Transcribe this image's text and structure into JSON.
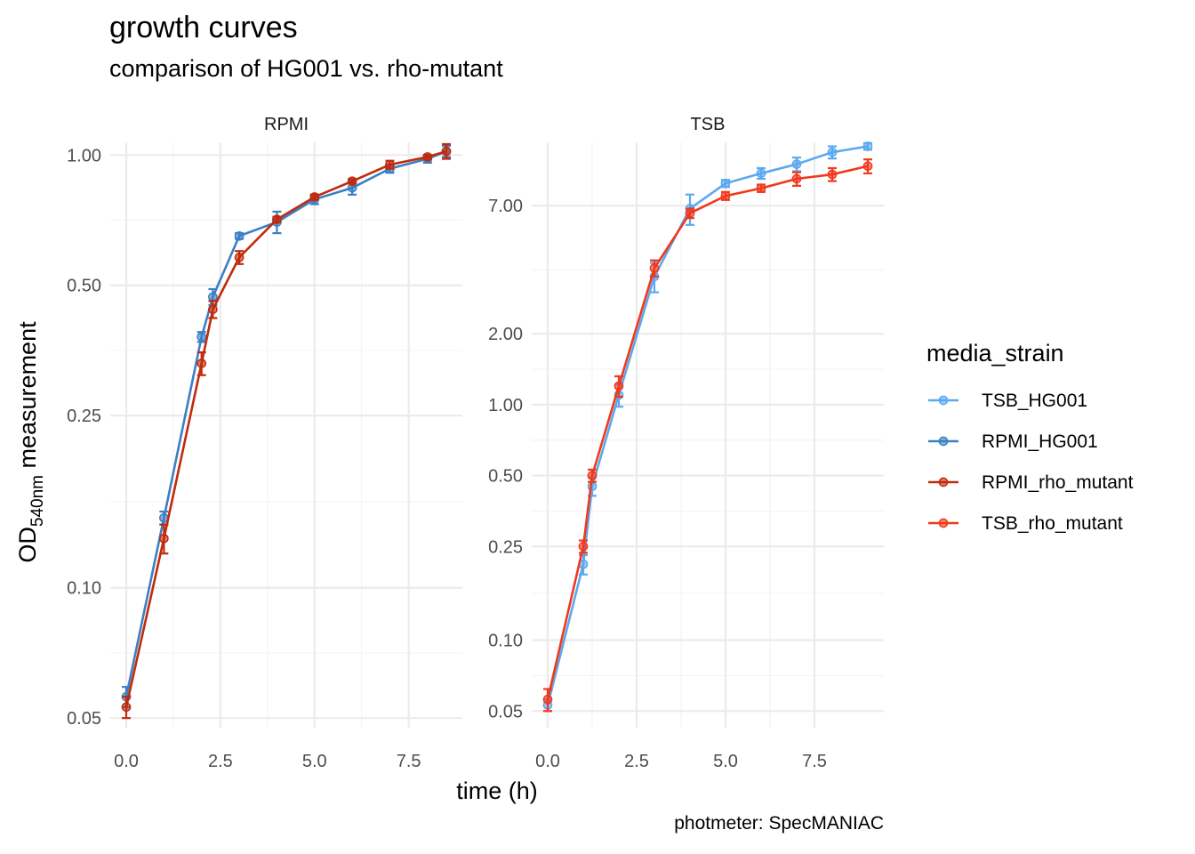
{
  "colors": {
    "TSB_HG001": "#5aa9f0",
    "RPMI_HG001": "#3b7fc4",
    "RPMI_rho_mutant": "#c02b0d",
    "TSB_rho_mutant": "#f0391c",
    "grid_major": "#ebebeb",
    "grid_minor": "#f3f3f3"
  },
  "chart_data": {
    "type": "line",
    "title": "growth curves",
    "subtitle": "comparison of HG001 vs. rho-mutant",
    "xlabel": "time (h)",
    "ylabel": {
      "main": "OD",
      "subscript": "540nm",
      "rest": " measurement"
    },
    "caption": "photmeter: SpecMANIAC",
    "yscale": "log10",
    "legend": {
      "title": "media_strain",
      "position": "right",
      "entries": [
        "TSB_HG001",
        "RPMI_HG001",
        "RPMI_rho_mutant",
        "TSB_rho_mutant"
      ]
    },
    "facets": [
      {
        "label": "RPMI",
        "xlim": [
          -0.425,
          8.925
        ],
        "ylim": [
          0.0475,
          1.07
        ],
        "x_ticks": [
          0,
          2.5,
          5,
          7.5
        ],
        "x_tick_labels": [
          "0.0",
          "2.5",
          "5.0",
          "7.5"
        ],
        "y_ticks": [
          0.05,
          0.1,
          0.25,
          0.5,
          1.0
        ],
        "y_tick_labels": [
          "0.05",
          "0.10",
          "0.25",
          "0.50",
          "1.00"
        ],
        "series": [
          {
            "name": "RPMI_HG001",
            "x": [
              0,
              1,
              2,
              2.3,
              3,
              4,
              5,
              6,
              7,
              8,
              8.5
            ],
            "y": [
              0.056,
              0.145,
              0.38,
              0.47,
              0.65,
              0.7,
              0.79,
              0.84,
              0.93,
              0.98,
              1.02
            ],
            "err": [
              0.003,
              0.005,
              0.01,
              0.02,
              0.01,
              0.04,
              0.02,
              0.03,
              0.02,
              0.02,
              0.03
            ]
          },
          {
            "name": "RPMI_rho_mutant",
            "x": [
              0,
              1,
              2,
              2.3,
              3,
              4,
              5,
              6,
              7,
              8,
              8.5
            ],
            "y": [
              0.053,
              0.13,
              0.33,
              0.44,
              0.58,
              0.71,
              0.8,
              0.87,
              0.95,
              0.99,
              1.02
            ],
            "err": [
              0.003,
              0.01,
              0.02,
              0.02,
              0.02,
              0.01,
              0.01,
              0.01,
              0.02,
              0.01,
              0.04
            ]
          }
        ]
      },
      {
        "label": "TSB",
        "xlim": [
          -0.45,
          9.45
        ],
        "ylim": [
          0.0425,
          13.0
        ],
        "x_ticks": [
          0,
          2.5,
          5,
          7.5
        ],
        "x_tick_labels": [
          "0.0",
          "2.5",
          "5.0",
          "7.5"
        ],
        "y_ticks": [
          0.05,
          0.1,
          0.25,
          0.5,
          1.0,
          2.0,
          7.0
        ],
        "y_tick_labels": [
          "0.05",
          "0.10",
          "0.25",
          "0.50",
          "1.00",
          "2.00",
          "7.00"
        ],
        "series": [
          {
            "name": "TSB_HG001",
            "x": [
              0,
              1,
              1.25,
              2,
              3,
              4,
              5,
              6,
              7,
              8,
              9
            ],
            "y": [
              0.053,
              0.21,
              0.45,
              1.1,
              3.5,
              6.8,
              8.7,
              9.6,
              10.5,
              11.8,
              12.5
            ],
            "err": [
              0.003,
              0.02,
              0.04,
              0.12,
              0.5,
              1.0,
              0.3,
              0.5,
              0.7,
              0.7,
              0.4
            ]
          },
          {
            "name": "TSB_rho_mutant",
            "x": [
              0,
              1,
              1.25,
              2,
              3,
              4,
              5,
              6,
              7,
              8,
              9
            ],
            "y": [
              0.056,
              0.25,
              0.5,
              1.2,
              3.8,
              6.5,
              7.7,
              8.3,
              9.1,
              9.5,
              10.3
            ],
            "err": [
              0.006,
              0.015,
              0.03,
              0.12,
              0.3,
              0.3,
              0.3,
              0.3,
              0.6,
              0.6,
              0.7
            ]
          }
        ]
      }
    ]
  }
}
